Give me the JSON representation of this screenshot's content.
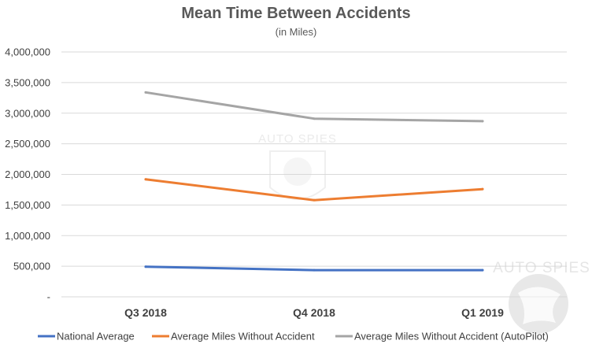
{
  "chart_data": {
    "type": "line",
    "title": "Mean Time Between Accidents",
    "subtitle": "(in Miles)",
    "xlabel": "",
    "ylabel": "",
    "categories": [
      "Q3 2018",
      "Q4 2018",
      "Q1 2019"
    ],
    "ylim": [
      0,
      4000000
    ],
    "y_ticks": [
      0,
      500000,
      1000000,
      1500000,
      2000000,
      2500000,
      3000000,
      3500000,
      4000000
    ],
    "y_tick_labels": [
      "-",
      "500,000",
      "1,000,000",
      "1,500,000",
      "2,000,000",
      "2,500,000",
      "3,000,000",
      "3,500,000",
      "4,000,000"
    ],
    "grid": true,
    "legend_position": "bottom",
    "series": [
      {
        "name": "National Average",
        "color": "#4472c4",
        "values": [
          492000,
          436000,
          436000
        ]
      },
      {
        "name": "Average Miles Without Accident",
        "color": "#ed7d31",
        "values": [
          1920000,
          1580000,
          1760000
        ]
      },
      {
        "name": "Average Miles Without Accident (AutoPilot)",
        "color": "#a5a5a5",
        "values": [
          3340000,
          2910000,
          2870000
        ]
      }
    ]
  },
  "watermark": {
    "center_text": "AUTO SPIES",
    "corner_text": "AUTO SPIES"
  }
}
